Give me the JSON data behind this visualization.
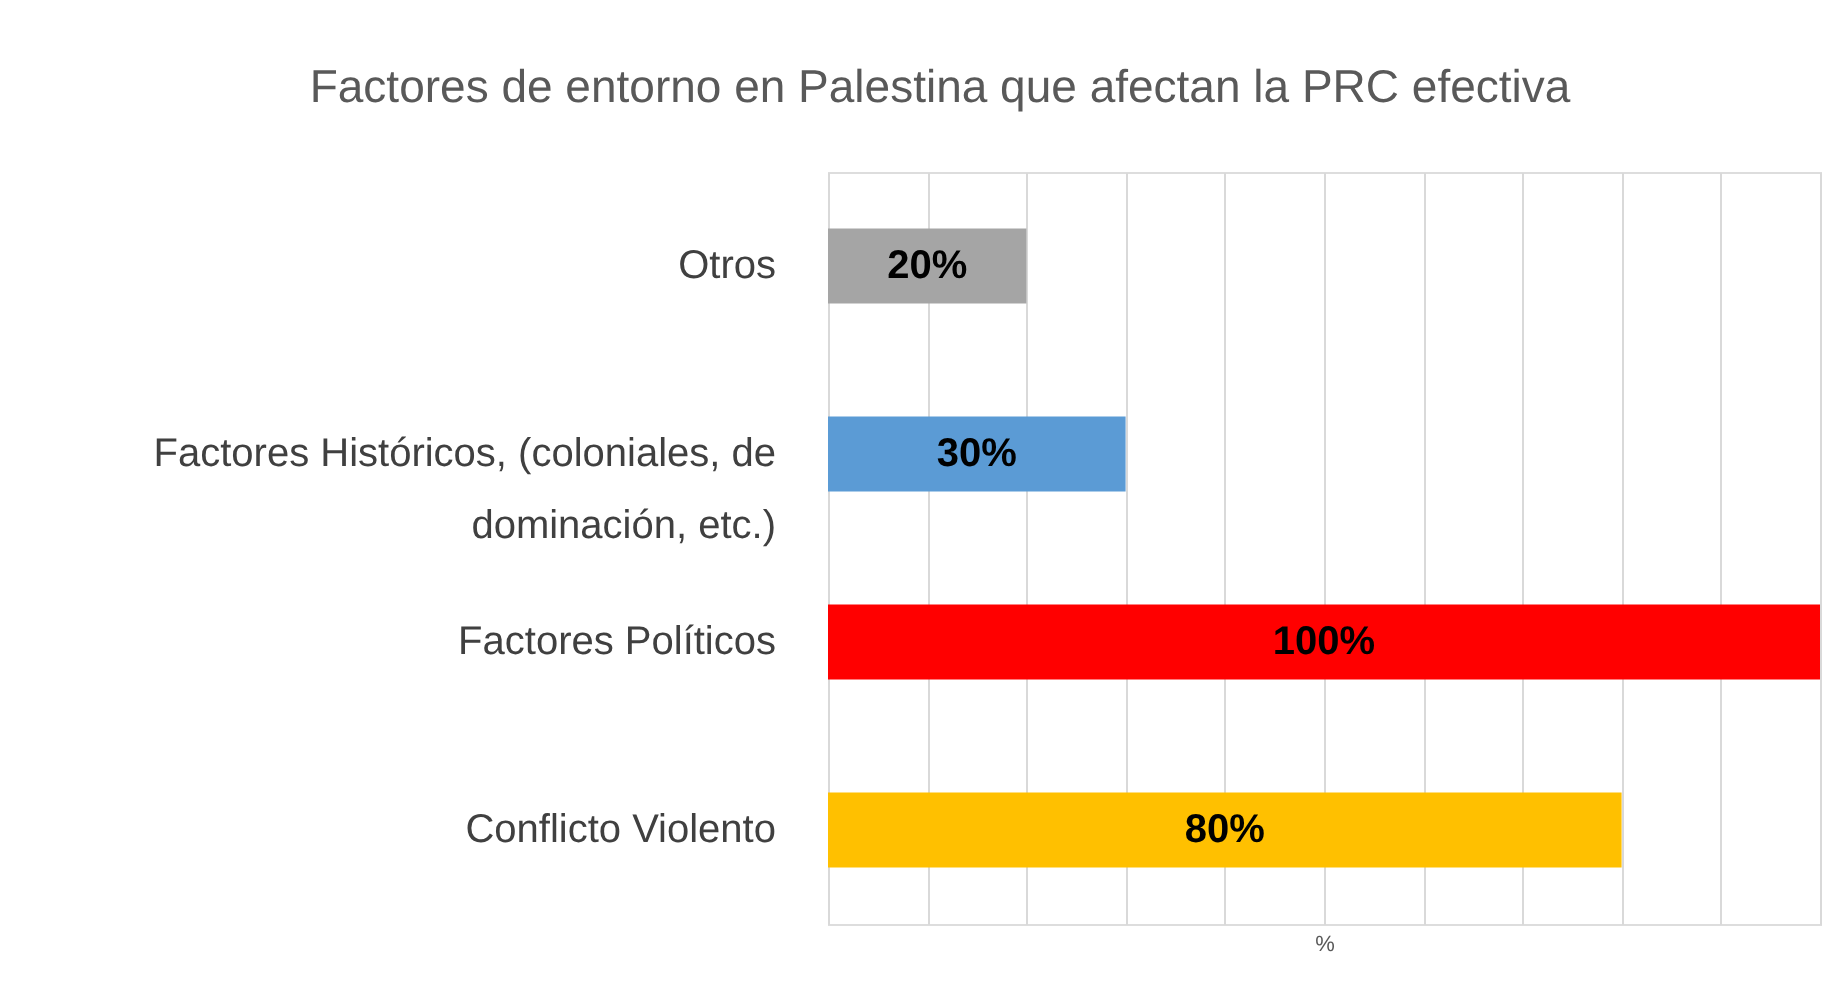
{
  "chart_data": {
    "type": "bar",
    "orientation": "horizontal",
    "title": "Factores de entorno en Palestina que afectan la PRC efectiva",
    "xlabel": "%",
    "categories": [
      "Otros",
      "Factores Históricos, (coloniales, de dominación, etc.)",
      "Factores Políticos",
      "Conflicto Violento"
    ],
    "values": [
      20,
      30,
      100,
      80
    ],
    "colors": [
      "#a5a5a5",
      "#5b9bd5",
      "#ff0000",
      "#ffc000"
    ],
    "value_labels": [
      "20%",
      "30%",
      "100%",
      "80%"
    ],
    "xlim": [
      0,
      100
    ],
    "xticks": [
      0,
      10,
      20,
      30,
      40,
      50,
      60,
      70,
      80,
      90,
      100
    ],
    "grid": "x",
    "tick_labels": "y"
  }
}
